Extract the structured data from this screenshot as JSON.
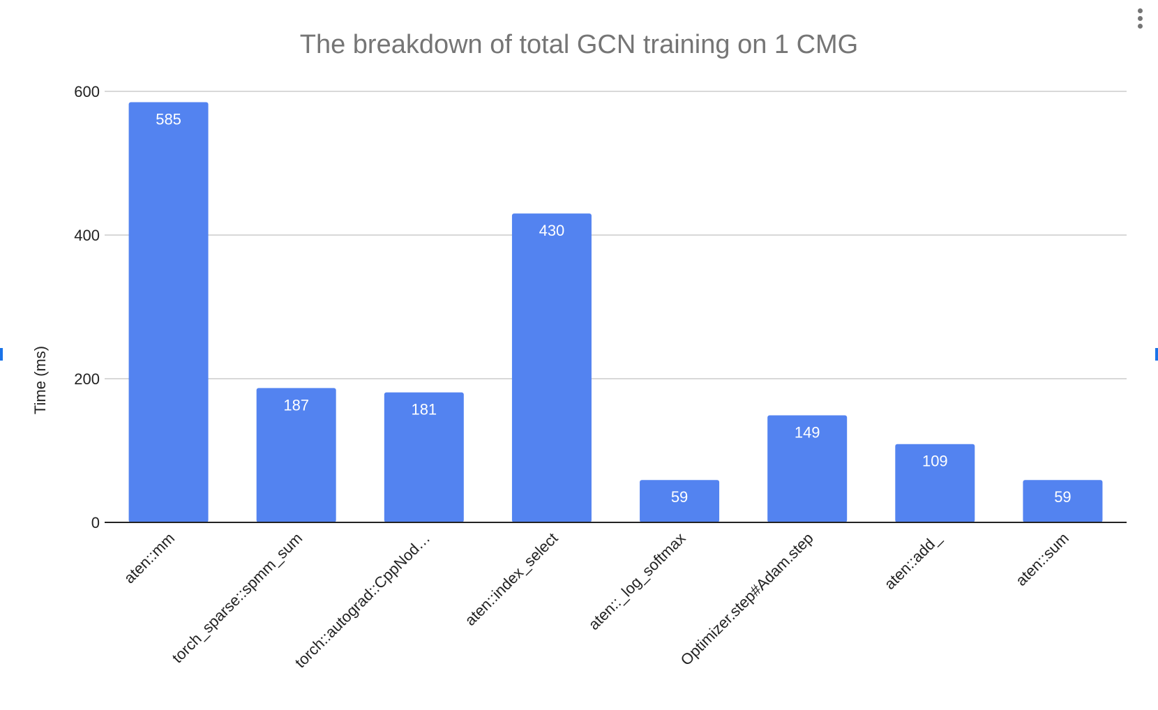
{
  "menu": {
    "icon": "more-vert-icon"
  },
  "chart_data": {
    "type": "bar",
    "title": "The breakdown of total GCN training on 1 CMG",
    "xlabel": "",
    "ylabel": "Time (ms)",
    "categories": [
      "aten::mm",
      "torch_sparse::spmm_sum",
      "torch::autograd::CppNod…",
      "aten::index_select",
      "aten::_log_softmax",
      "Optimizer.step#Adam.step",
      "aten::add_",
      "aten::sum"
    ],
    "values": [
      585,
      187,
      181,
      430,
      59,
      149,
      109,
      59
    ],
    "ylim": [
      0,
      600
    ],
    "yticks": [
      0,
      200,
      400,
      600
    ],
    "grid": true,
    "legend": "none",
    "colors": {
      "bar": "#5383f0",
      "grid": "#cccccc",
      "axis": "#222222",
      "title": "#757575",
      "label": "#ffffff"
    }
  }
}
